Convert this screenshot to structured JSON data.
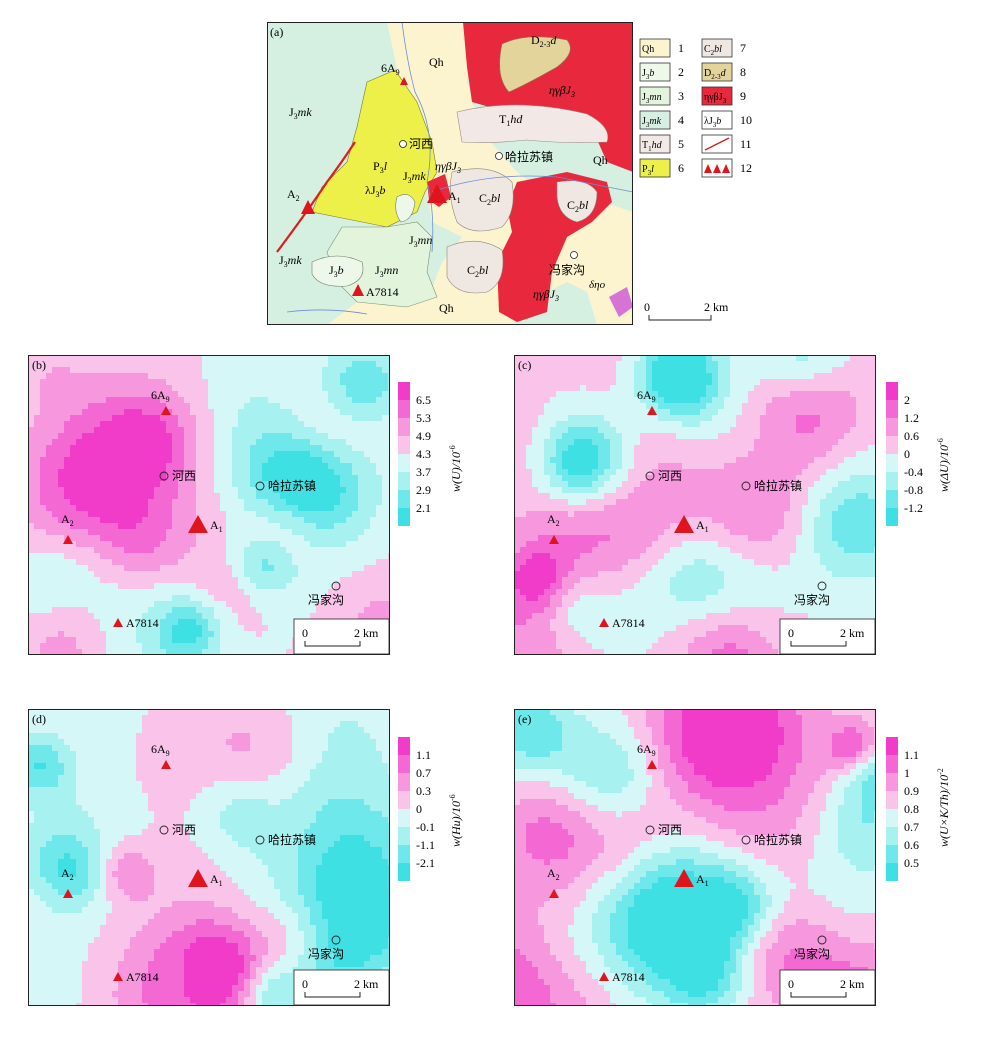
{
  "panel_a": {
    "label": "(a)",
    "scale_label": "2 km",
    "scale_zero": "0",
    "map_labels": {
      "qh_top": "Qh",
      "qh_right": "Qh",
      "qh_bottom": "Qh",
      "d_top": "D",
      "d_sub": "2-3",
      "d_tail": "d",
      "eta_top": "ηγβJ",
      "eta_top_sub": "3",
      "t1hd": "T",
      "t1hd_sub": "1",
      "t1hd_tail": "hd",
      "j3mk_left": "J",
      "j3mk_left_sub": "3",
      "j3mk_left_tail": "mk",
      "p3l": "P",
      "p3l_sub": "3",
      "p3l_tail": "l",
      "lj3b": "λJ",
      "lj3b_sub": "3",
      "lj3b_tail": "b",
      "j3mk_mid": "J",
      "j3mk_mid_sub": "3",
      "j3mk_mid_tail": "mk",
      "eta_mid": "ηγβJ",
      "eta_mid_sub": "3",
      "c2bl_1": "C",
      "c2bl_1_sub": "2",
      "c2bl_1_tail": "bl",
      "c2bl_2": "C",
      "c2bl_2_sub": "2",
      "c2bl_2_tail": "bl",
      "c2bl_3": "C",
      "c2bl_3_sub": "2",
      "c2bl_3_tail": "bl",
      "j3mn_a": "J",
      "j3mn_a_sub": "3",
      "j3mn_a_tail": "mn",
      "j3mn_b": "J",
      "j3mn_b_sub": "3",
      "j3mn_b_tail": "mn",
      "j3mk_low": "J",
      "j3mk_low_sub": "3",
      "j3mk_low_tail": "mk",
      "j3b": "J",
      "j3b_sub": "3",
      "j3b_tail": "b",
      "eta_low": "ηγβJ",
      "eta_low_sub": "3",
      "dno": "δηο"
    },
    "places": {
      "hexi": "河西",
      "halasu": "哈拉苏镇",
      "fengjiagou": "冯家沟"
    },
    "points": {
      "a9": "6A",
      "a9_sub": "9",
      "a1": "A",
      "a1_sub": "1",
      "a2": "A",
      "a2_sub": "2",
      "a7814": "A7814"
    }
  },
  "legend": {
    "items": [
      {
        "code": "Qh",
        "sub": "",
        "tail": "",
        "num": "1",
        "color": "#fbf4cf"
      },
      {
        "code": "J",
        "sub": "3",
        "tail": "b",
        "num": "2",
        "color": "#eef8ea"
      },
      {
        "code": "J",
        "sub": "3",
        "tail": "mn",
        "num": "3",
        "color": "#e2f4dc"
      },
      {
        "code": "J",
        "sub": "3",
        "tail": "mk",
        "num": "4",
        "color": "#d5efe1"
      },
      {
        "code": "T",
        "sub": "1",
        "tail": "hd",
        "num": "5",
        "color": "#f2e8e6"
      },
      {
        "code": "P",
        "sub": "3",
        "tail": "l",
        "num": "6",
        "color": "#eef04a"
      },
      {
        "code": "C",
        "sub": "2",
        "tail": "bl",
        "num": "7",
        "color": "#efe8e2"
      },
      {
        "code": "D",
        "sub": "2-3",
        "tail": "d",
        "num": "8",
        "color": "#e3d49c"
      },
      {
        "code": "ηγβJ",
        "sub": "3",
        "tail": "",
        "num": "9",
        "color": "#e8283c"
      },
      {
        "code": "λJ",
        "sub": "3",
        "tail": "b",
        "num": "10",
        "color": "#ffffff"
      },
      {
        "code": "",
        "sub": "",
        "tail": "",
        "num": "11",
        "color": "#ffffff"
      },
      {
        "code": "",
        "sub": "",
        "tail": "",
        "num": "12",
        "color": "#ffffff"
      }
    ]
  },
  "contour_panels": [
    {
      "id": "b",
      "label": "(b)",
      "axis": "w(U)/10",
      "axis_sup": "-6",
      "ticks": [
        "6.5",
        "5.3",
        "4.9",
        "4.3",
        "3.7",
        "2.9",
        "2.1"
      ],
      "colors": [
        "#f03cc8",
        "#f468d3",
        "#f797dd",
        "#fac3ea",
        "#d6f7f7",
        "#a7f1f1",
        "#6ee8ea",
        "#3fe0e4"
      ]
    },
    {
      "id": "c",
      "label": "(c)",
      "axis": "w(ΔU)/10",
      "axis_sup": "-6",
      "ticks": [
        "2",
        "1.2",
        "0.6",
        "0",
        "-0.4",
        "-0.8",
        "-1.2"
      ],
      "colors": [
        "#f03cc8",
        "#f468d3",
        "#f797dd",
        "#fac3ea",
        "#d6f7f7",
        "#a7f1f1",
        "#6ee8ea",
        "#3fe0e4"
      ]
    },
    {
      "id": "d",
      "label": "(d)",
      "axis": "w(Hu)/10",
      "axis_sup": "-6",
      "ticks": [
        "1.1",
        "0.7",
        "0.3",
        "0",
        "-0.1",
        "-1.1",
        "-2.1"
      ],
      "colors": [
        "#f03cc8",
        "#f468d3",
        "#f797dd",
        "#fac3ea",
        "#d6f7f7",
        "#a7f1f1",
        "#6ee8ea",
        "#3fe0e4"
      ]
    },
    {
      "id": "e",
      "label": "(e)",
      "axis": "w(U×K/Th)/10",
      "axis_sup": "-2",
      "ticks": [
        "1.1",
        "1",
        "0.9",
        "0.8",
        "0.7",
        "0.6",
        "0.5"
      ],
      "colors": [
        "#f03cc8",
        "#f468d3",
        "#f797dd",
        "#fac3ea",
        "#d6f7f7",
        "#a7f1f1",
        "#6ee8ea",
        "#3fe0e4"
      ]
    }
  ],
  "contour_common": {
    "scale_zero": "0",
    "scale_label": "2 km",
    "hexi": "河西",
    "halasu": "哈拉苏镇",
    "fengjiagou": "冯家沟",
    "a9": "6A",
    "a9_sub": "9",
    "a1": "A",
    "a1_sub": "1",
    "a2": "A",
    "a2_sub": "2",
    "a7814": "A7814"
  }
}
